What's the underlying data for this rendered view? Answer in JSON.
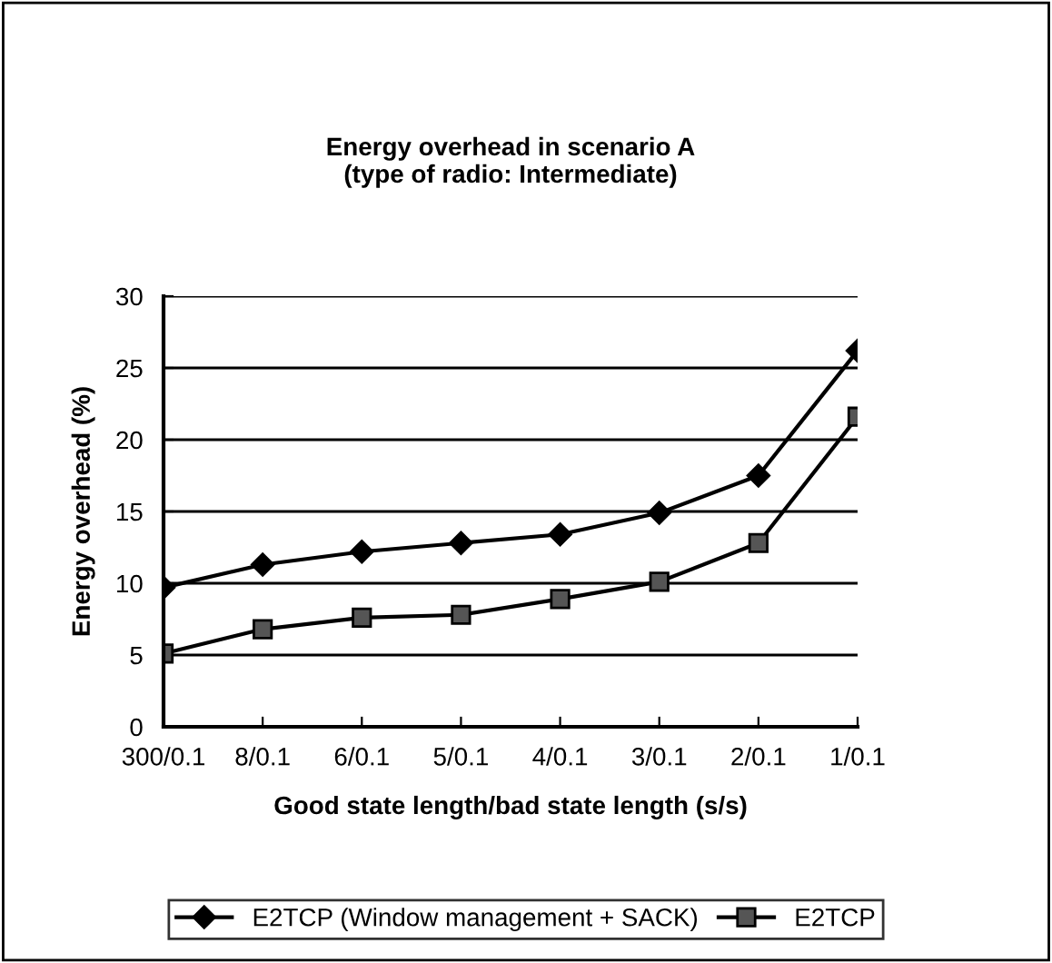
{
  "chart_data": {
    "type": "line",
    "title": "Energy overhead in scenario A\n(type of radio: Intermediate)",
    "xlabel": "Good state length/bad state length (s/s)",
    "ylabel": "Energy overhead (%)",
    "categories": [
      "300/0.1",
      "8/0.1",
      "6/0.1",
      "5/0.1",
      "4/0.1",
      "3/0.1",
      "2/0.1",
      "1/0.1"
    ],
    "series": [
      {
        "name": "E2TCP (Window management + SACK)",
        "color": "#000000",
        "marker": "diamond",
        "values": [
          9.7,
          11.3,
          12.2,
          12.8,
          13.4,
          14.9,
          17.5,
          26.2
        ]
      },
      {
        "name": "E2TCP",
        "color": "#000000",
        "marker": "square",
        "values": [
          5.1,
          6.8,
          7.6,
          7.8,
          8.9,
          10.1,
          12.8,
          21.6
        ]
      }
    ],
    "ylim": [
      0,
      30
    ],
    "yticks": [
      0,
      5,
      10,
      15,
      20,
      25,
      30
    ],
    "grid": "y",
    "legend": "bottom"
  }
}
